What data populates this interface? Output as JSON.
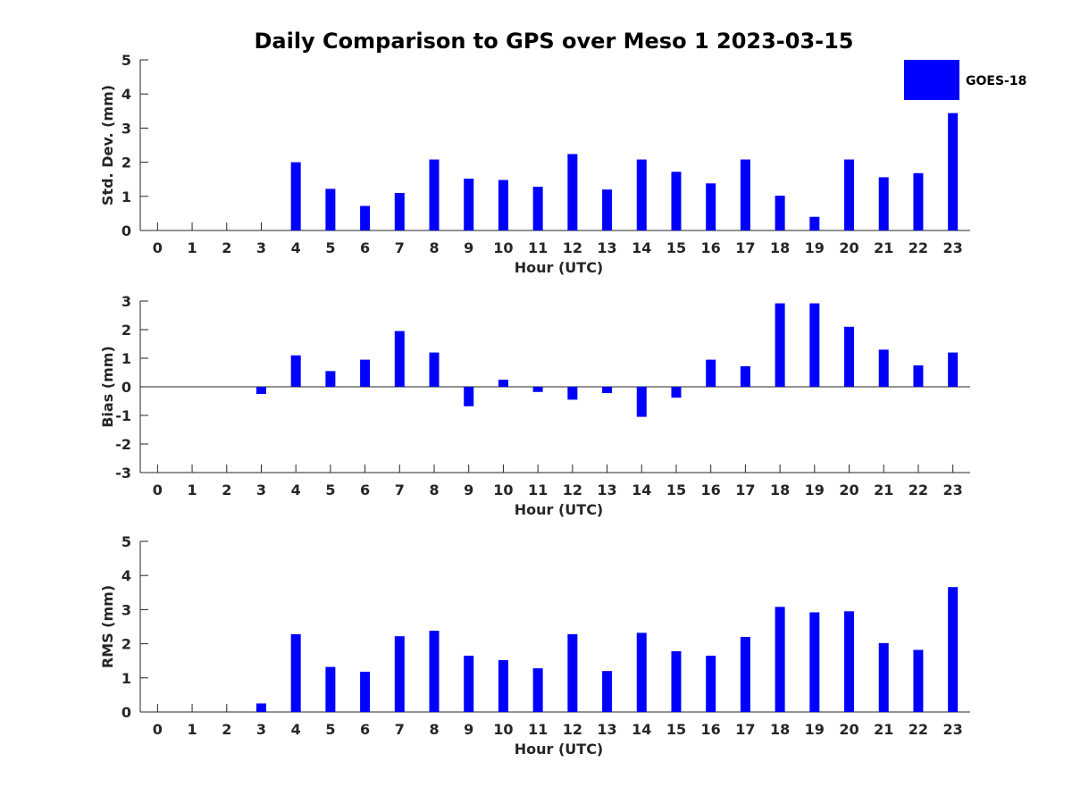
{
  "title": "Daily Comparison to GPS over Meso 1 2023-03-15",
  "legend": {
    "label": "GOES-18",
    "color": "#0000ff",
    "position": "top-right"
  },
  "chart_data": [
    {
      "type": "bar",
      "title": "Daily Comparison to GPS over Meso 1 2023-03-15",
      "xlabel": "Hour (UTC)",
      "ylabel": "Std. Dev. (mm)",
      "categories": [
        "0",
        "1",
        "2",
        "3",
        "4",
        "5",
        "6",
        "7",
        "8",
        "9",
        "10",
        "11",
        "12",
        "13",
        "14",
        "15",
        "16",
        "17",
        "18",
        "19",
        "20",
        "21",
        "22",
        "23"
      ],
      "xlim": [
        -0.5,
        23.5
      ],
      "ylim": [
        0,
        5
      ],
      "yticks": [
        "0",
        "1",
        "2",
        "3",
        "4",
        "5"
      ],
      "grid": false,
      "series": [
        {
          "name": "GOES-18",
          "color": "#0000ff",
          "values": [
            null,
            null,
            null,
            null,
            2.0,
            1.22,
            0.72,
            1.1,
            2.08,
            1.52,
            1.48,
            1.28,
            2.24,
            1.2,
            2.08,
            1.72,
            1.38,
            2.08,
            1.02,
            0.4,
            2.08,
            1.56,
            1.68,
            3.44
          ]
        }
      ]
    },
    {
      "type": "bar",
      "xlabel": "Hour (UTC)",
      "ylabel": "Bias (mm)",
      "categories": [
        "0",
        "1",
        "2",
        "3",
        "4",
        "5",
        "6",
        "7",
        "8",
        "9",
        "10",
        "11",
        "12",
        "13",
        "14",
        "15",
        "16",
        "17",
        "18",
        "19",
        "20",
        "21",
        "22",
        "23"
      ],
      "xlim": [
        -0.5,
        23.5
      ],
      "ylim": [
        -3,
        3
      ],
      "yticks": [
        "-3",
        "-2",
        "-1",
        "0",
        "1",
        "2",
        "3"
      ],
      "grid": false,
      "series": [
        {
          "name": "GOES-18",
          "color": "#0000ff",
          "values": [
            null,
            null,
            null,
            -0.25,
            1.1,
            0.55,
            0.95,
            1.95,
            1.2,
            -0.68,
            0.25,
            -0.18,
            -0.45,
            -0.22,
            -1.05,
            -0.38,
            0.95,
            0.72,
            2.92,
            2.92,
            2.1,
            1.3,
            0.75,
            1.2
          ]
        }
      ]
    },
    {
      "type": "bar",
      "xlabel": "Hour (UTC)",
      "ylabel": "RMS (mm)",
      "categories": [
        "0",
        "1",
        "2",
        "3",
        "4",
        "5",
        "6",
        "7",
        "8",
        "9",
        "10",
        "11",
        "12",
        "13",
        "14",
        "15",
        "16",
        "17",
        "18",
        "19",
        "20",
        "21",
        "22",
        "23"
      ],
      "xlim": [
        -0.5,
        23.5
      ],
      "ylim": [
        0,
        5
      ],
      "yticks": [
        "0",
        "1",
        "2",
        "3",
        "4",
        "5"
      ],
      "grid": false,
      "series": [
        {
          "name": "GOES-18",
          "color": "#0000ff",
          "values": [
            null,
            null,
            null,
            0.25,
            2.28,
            1.32,
            1.18,
            2.22,
            2.38,
            1.65,
            1.52,
            1.28,
            2.28,
            1.2,
            2.32,
            1.78,
            1.65,
            2.2,
            3.08,
            2.92,
            2.95,
            2.02,
            1.82,
            3.66
          ]
        }
      ]
    }
  ]
}
